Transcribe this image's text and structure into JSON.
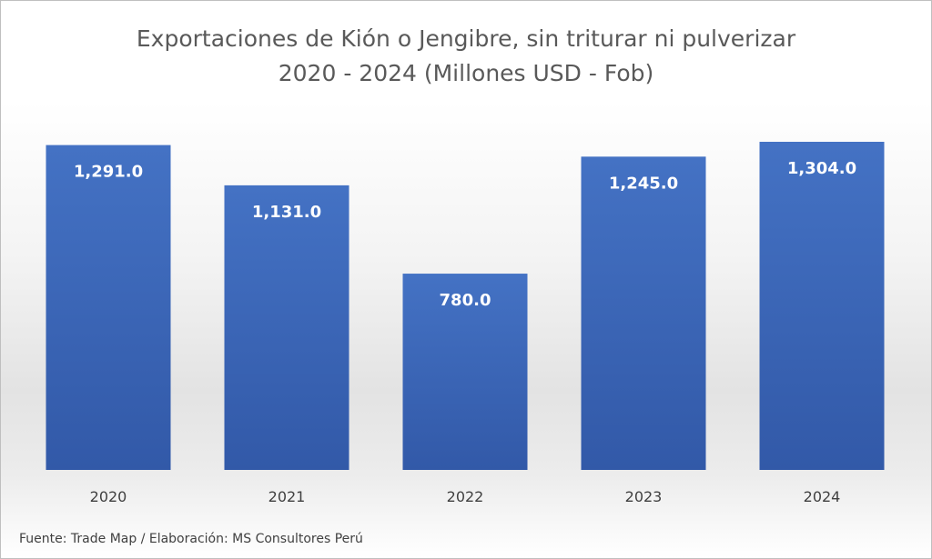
{
  "chart_data": {
    "type": "bar",
    "title": "Exportaciones de Kión o Jengibre, sin triturar ni pulverizar",
    "subtitle": "2020 - 2024 (Millones USD - Fob)",
    "categories": [
      "2020",
      "2021",
      "2022",
      "2023",
      "2024"
    ],
    "values": [
      1291.0,
      1131.0,
      780.0,
      1245.0,
      1304.0
    ],
    "data_labels": [
      "1,291.0",
      "1,131.0",
      "780.0",
      "1,245.0",
      "1,304.0"
    ],
    "ylim": [
      0,
      1304
    ],
    "grid": false,
    "legend": "none",
    "colors": {
      "bar_top": "#4472c4",
      "bar_bottom": "#3259a8"
    }
  },
  "footer": {
    "source": "Fuente: Trade Map / Elaboración: MS Consultores Perú"
  }
}
